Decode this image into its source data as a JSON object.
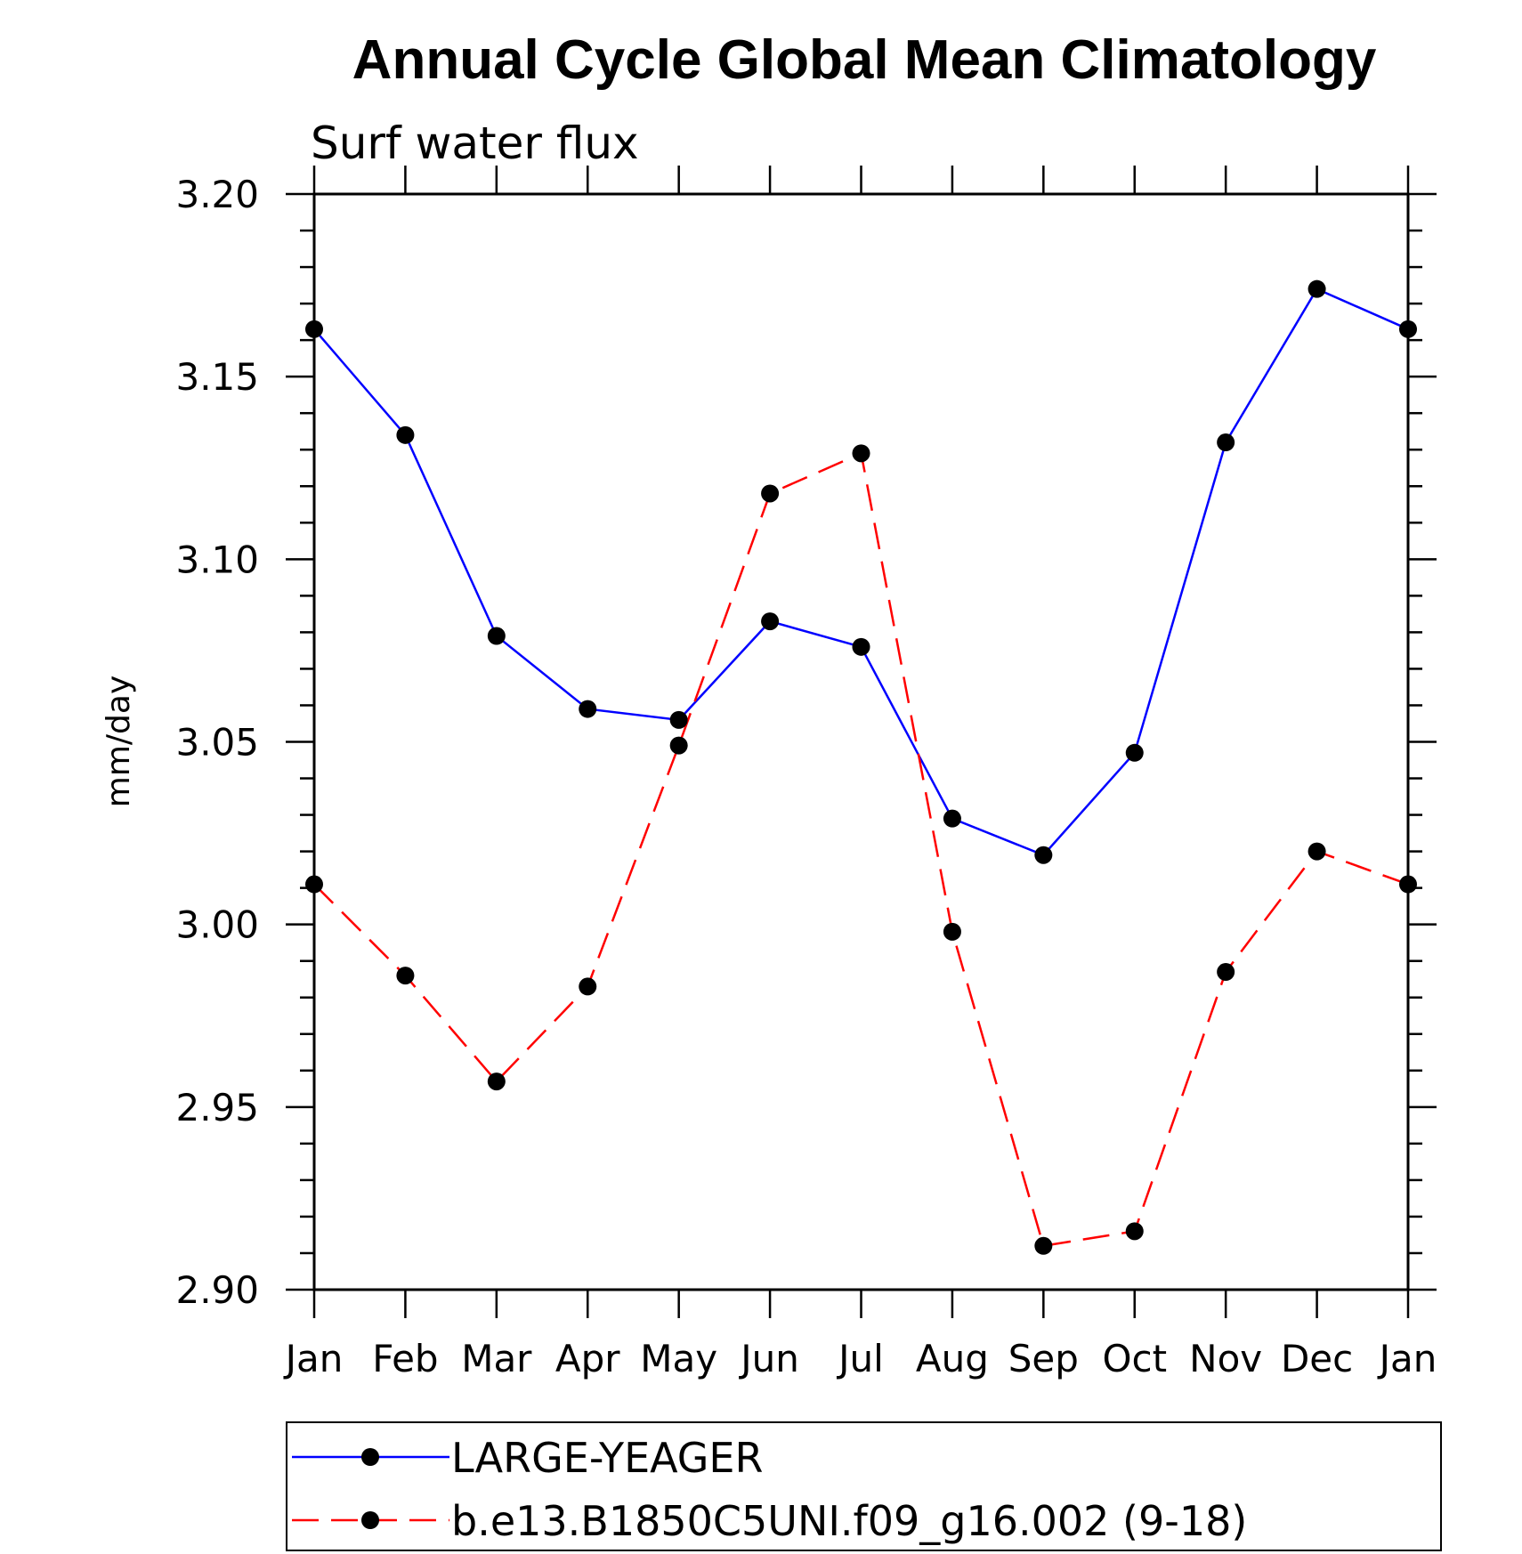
{
  "chart_data": {
    "type": "line",
    "title": "Annual Cycle Global Mean Climatology",
    "subtitle": "Surf water flux",
    "xlabel": "",
    "ylabel": "mm/day",
    "categories": [
      "Jan",
      "Feb",
      "Mar",
      "Apr",
      "May",
      "Jun",
      "Jul",
      "Aug",
      "Sep",
      "Oct",
      "Nov",
      "Dec",
      "Jan"
    ],
    "ylim": [
      2.9,
      3.2
    ],
    "yticks": [
      "2.90",
      "2.95",
      "3.00",
      "3.05",
      "3.10",
      "3.15",
      "3.20"
    ],
    "grid": false,
    "legend_position": "bottom",
    "series": [
      {
        "name": "LARGE-YEAGER",
        "color": "#0000ff",
        "line_style": "solid",
        "marker": "filled-circle",
        "values": [
          3.163,
          3.134,
          3.079,
          3.059,
          3.056,
          3.083,
          3.076,
          3.029,
          3.019,
          3.047,
          3.132,
          3.174,
          3.163
        ]
      },
      {
        "name": "b.e13.B1850C5UNI.f09_g16.002 (9-18)",
        "color": "#ff0000",
        "line_style": "dashed",
        "marker": "filled-circle",
        "values": [
          3.011,
          2.986,
          2.957,
          2.983,
          3.049,
          3.118,
          3.129,
          2.998,
          2.912,
          2.916,
          2.987,
          3.02,
          3.011
        ]
      }
    ]
  }
}
